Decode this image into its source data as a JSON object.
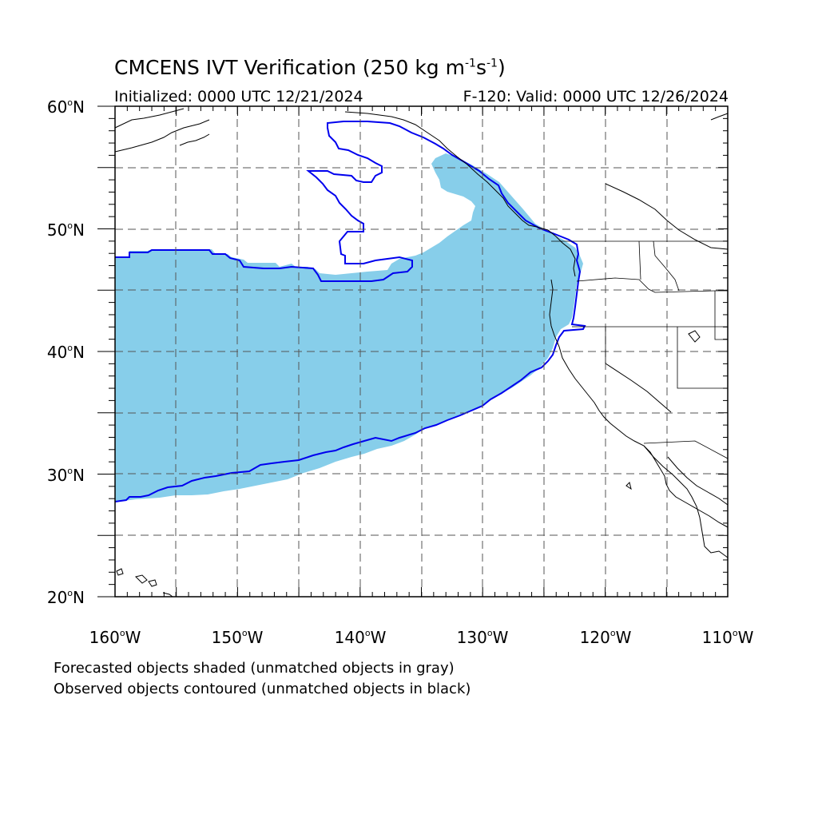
{
  "title": {
    "main": "CMCENS IVT Verification (250 kg m",
    "sup1": "-1",
    "mid": "s",
    "sup2": "-1",
    "end": ")"
  },
  "subtitle": {
    "left": "Initialized: 0000 UTC 12/21/2024",
    "right": "F-120: Valid: 0000 UTC 12/26/2024"
  },
  "axes": {
    "lat_labels": [
      {
        "num": "60",
        "hem": "N"
      },
      {
        "num": "50",
        "hem": "N"
      },
      {
        "num": "40",
        "hem": "N"
      },
      {
        "num": "30",
        "hem": "N"
      },
      {
        "num": "20",
        "hem": "N"
      }
    ],
    "lon_labels": [
      {
        "num": "160",
        "hem": "W"
      },
      {
        "num": "150",
        "hem": "W"
      },
      {
        "num": "140",
        "hem": "W"
      },
      {
        "num": "130",
        "hem": "W"
      },
      {
        "num": "120",
        "hem": "W"
      },
      {
        "num": "110",
        "hem": "W"
      }
    ],
    "lat_range": [
      20,
      60
    ],
    "lon_range": [
      -160,
      -110
    ],
    "grid_interval_deg": 5,
    "grid_style": "dashed"
  },
  "legend": {
    "line1": "Forecasted objects shaded (unmatched objects in gray)",
    "line2": "Observed objects contoured (unmatched objects in black)"
  },
  "colors": {
    "forecast_fill": "#87ceea",
    "observed_contour": "#0000ee",
    "coastline": "#000000",
    "grid": "#555555"
  }
}
